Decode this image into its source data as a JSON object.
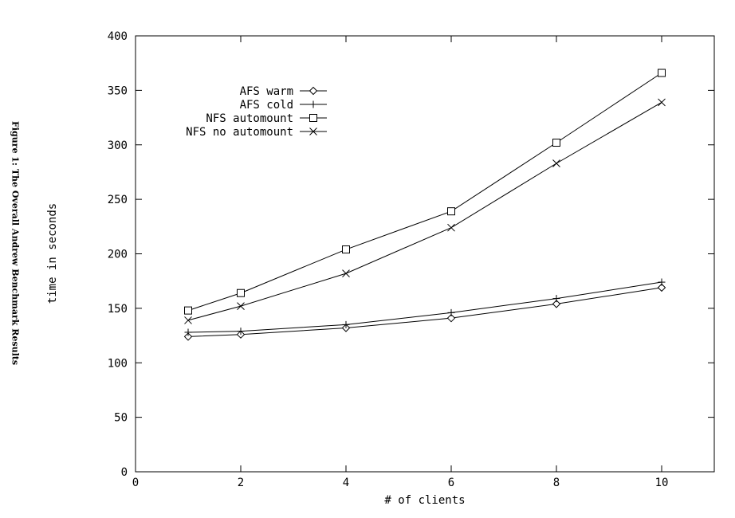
{
  "caption": "Figure 1: The Overall Andrew Benchmark Results",
  "chart_data": {
    "type": "line",
    "title": "",
    "xlabel": "# of clients",
    "ylabel": "time in seconds",
    "xlim": [
      0,
      11
    ],
    "ylim": [
      0,
      400
    ],
    "xticks": [
      0,
      2,
      4,
      6,
      8,
      10
    ],
    "yticks": [
      0,
      50,
      100,
      150,
      200,
      250,
      300,
      350,
      400
    ],
    "grid": false,
    "legend_position": "top-left",
    "x": [
      1,
      2,
      4,
      6,
      8,
      10
    ],
    "series": [
      {
        "name": "AFS warm",
        "marker": "diamond",
        "values": [
          124,
          126,
          132,
          141,
          154,
          169
        ]
      },
      {
        "name": "AFS cold",
        "marker": "plus",
        "values": [
          128,
          129,
          135,
          146,
          159,
          174
        ]
      },
      {
        "name": "NFS automount",
        "marker": "square",
        "values": [
          148,
          164,
          204,
          239,
          302,
          366
        ]
      },
      {
        "name": "NFS no automount",
        "marker": "cross",
        "values": [
          139,
          152,
          182,
          224,
          283,
          339
        ]
      }
    ]
  }
}
